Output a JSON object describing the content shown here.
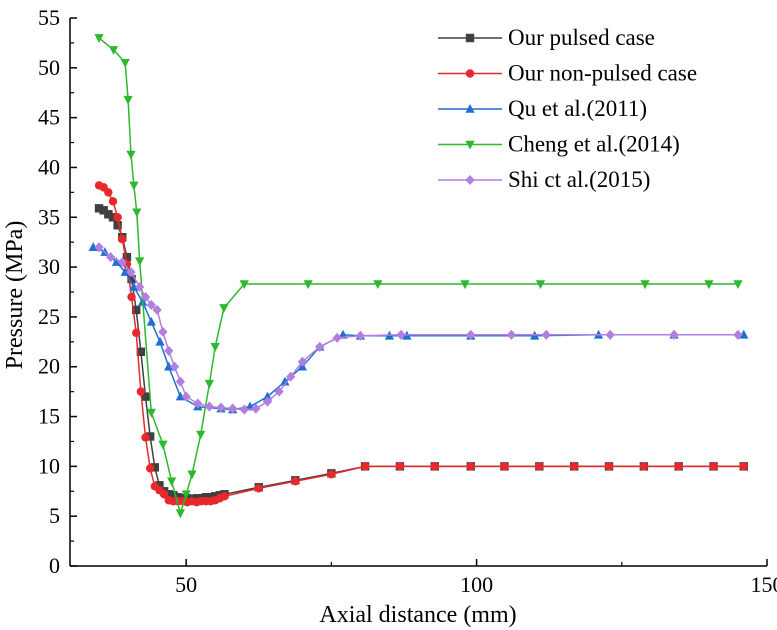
{
  "chart_data": {
    "type": "line",
    "title": "",
    "xlabel": "Axial distance (mm)",
    "ylabel": "Pressure (MPa)",
    "xlim": [
      30,
      150
    ],
    "ylim": [
      0,
      55
    ],
    "xticks": [
      50,
      100,
      150
    ],
    "yticks": [
      0,
      5,
      10,
      15,
      20,
      25,
      30,
      35,
      40,
      45,
      50,
      55
    ],
    "grid": false,
    "legend_position": "top-right",
    "series": [
      {
        "name": "Our pulsed case",
        "color": "#404040",
        "marker": "square",
        "x": [
          35,
          35.8,
          36.6,
          37.4,
          38.2,
          39,
          39.8,
          40.6,
          41.4,
          42.2,
          43,
          43.8,
          44.6,
          45.4,
          46.2,
          47,
          47.8,
          48.6,
          49.4,
          50.2,
          51,
          51.8,
          52.6,
          53.4,
          54.2,
          55,
          55.8,
          56.6,
          62.5,
          68.8,
          75,
          80.8,
          86.8,
          92.8,
          99,
          104.8,
          110.8,
          116.8,
          122.8,
          128.8,
          134.8,
          140.8,
          146
        ],
        "y": [
          35.9,
          35.7,
          35.3,
          35,
          34.2,
          33,
          31,
          28.8,
          25.7,
          21.5,
          17,
          13,
          9.9,
          8.1,
          7.5,
          7.2,
          7.1,
          6.9,
          6.8,
          6.8,
          6.7,
          6.8,
          6.8,
          6.9,
          6.9,
          7.0,
          7.1,
          7.2,
          7.9,
          8.6,
          9.3,
          10.0,
          10.0,
          10.0,
          10.0,
          10.0,
          10.0,
          10.0,
          10.0,
          10.0,
          10.0,
          10.0,
          10.0
        ]
      },
      {
        "name": "Our non-pulsed case",
        "color": "#e8282a",
        "marker": "circle",
        "x": [
          35,
          35.8,
          36.6,
          37.4,
          38.2,
          39,
          39.8,
          40.6,
          41.4,
          42.2,
          43,
          43.8,
          44.6,
          45.4,
          46.2,
          47,
          47.8,
          48.6,
          49.4,
          50.2,
          51,
          51.8,
          52.6,
          53.4,
          54.2,
          55,
          55.8,
          56.6,
          62.5,
          68.8,
          75,
          80.8,
          86.8,
          92.8,
          99,
          104.8,
          110.8,
          116.8,
          122.8,
          128.8,
          134.8,
          140.8,
          146
        ],
        "y": [
          38.2,
          38.0,
          37.5,
          36.6,
          35,
          32.8,
          30.3,
          27,
          23.4,
          17.5,
          12.9,
          9.8,
          8.0,
          7.6,
          7.2,
          6.6,
          6.5,
          6.5,
          6.5,
          6.4,
          6.5,
          6.4,
          6.5,
          6.5,
          6.5,
          6.6,
          6.8,
          7.0,
          7.8,
          8.5,
          9.2,
          10.0,
          10.0,
          10.0,
          10.0,
          10.0,
          10.0,
          10.0,
          10.0,
          10.0,
          10.0,
          10.0,
          10.0
        ]
      },
      {
        "name": "Qu et al.(2011)",
        "color": "#1f6fd1",
        "marker": "triangle-up",
        "x": [
          34,
          36,
          38,
          39.5,
          41,
          42.5,
          44,
          45.5,
          47,
          49,
          52,
          56,
          58,
          61,
          64,
          67,
          70,
          73,
          77,
          80,
          85,
          88,
          99,
          110,
          121,
          134,
          146
        ],
        "y": [
          32,
          31.5,
          30.5,
          29.5,
          28,
          26.5,
          24.5,
          22.5,
          20,
          17,
          16,
          15.8,
          15.7,
          16,
          17,
          18.5,
          20,
          22,
          23.2,
          23.1,
          23.1,
          23.1,
          23.1,
          23.1,
          23.2,
          23.2,
          23.2
        ]
      },
      {
        "name": "Cheng et al.(2014)",
        "color": "#2eb82e",
        "marker": "triangle-down",
        "x": [
          35,
          37.5,
          39.5,
          40,
          40.5,
          41,
          41.5,
          42,
          44,
          46,
          47.5,
          49,
          50,
          51,
          52.5,
          54,
          55,
          56.5,
          60,
          71,
          83,
          98,
          111,
          129,
          140,
          145
        ],
        "y": [
          53,
          51.8,
          50.5,
          46.8,
          41.3,
          38.2,
          35.5,
          30.6,
          15.4,
          12.2,
          8.5,
          5.3,
          7.2,
          9.2,
          13.2,
          18.3,
          22.0,
          25.9,
          28.3,
          28.3,
          28.3,
          28.3,
          28.3,
          28.3,
          28.3,
          28.3
        ]
      },
      {
        "name": "Shi ct al.(2015)",
        "color": "#b07fe0",
        "marker": "diamond",
        "x": [
          35,
          37,
          39,
          40.5,
          42,
          43,
          44,
          45,
          46,
          47,
          48,
          49,
          50,
          52,
          54,
          56,
          58,
          60,
          62,
          64,
          66,
          68,
          70,
          73,
          76,
          80,
          87,
          99,
          106,
          112,
          123,
          134,
          145
        ],
        "y": [
          32,
          31,
          30.5,
          29.5,
          28,
          27,
          26.2,
          25.7,
          23.5,
          21.6,
          20,
          18.5,
          17,
          16.3,
          16,
          15.9,
          15.8,
          15.7,
          15.8,
          16.5,
          17.5,
          19,
          20.5,
          22,
          22.9,
          23.1,
          23.2,
          23.2,
          23.2,
          23.2,
          23.2,
          23.2,
          23.2
        ]
      }
    ]
  }
}
